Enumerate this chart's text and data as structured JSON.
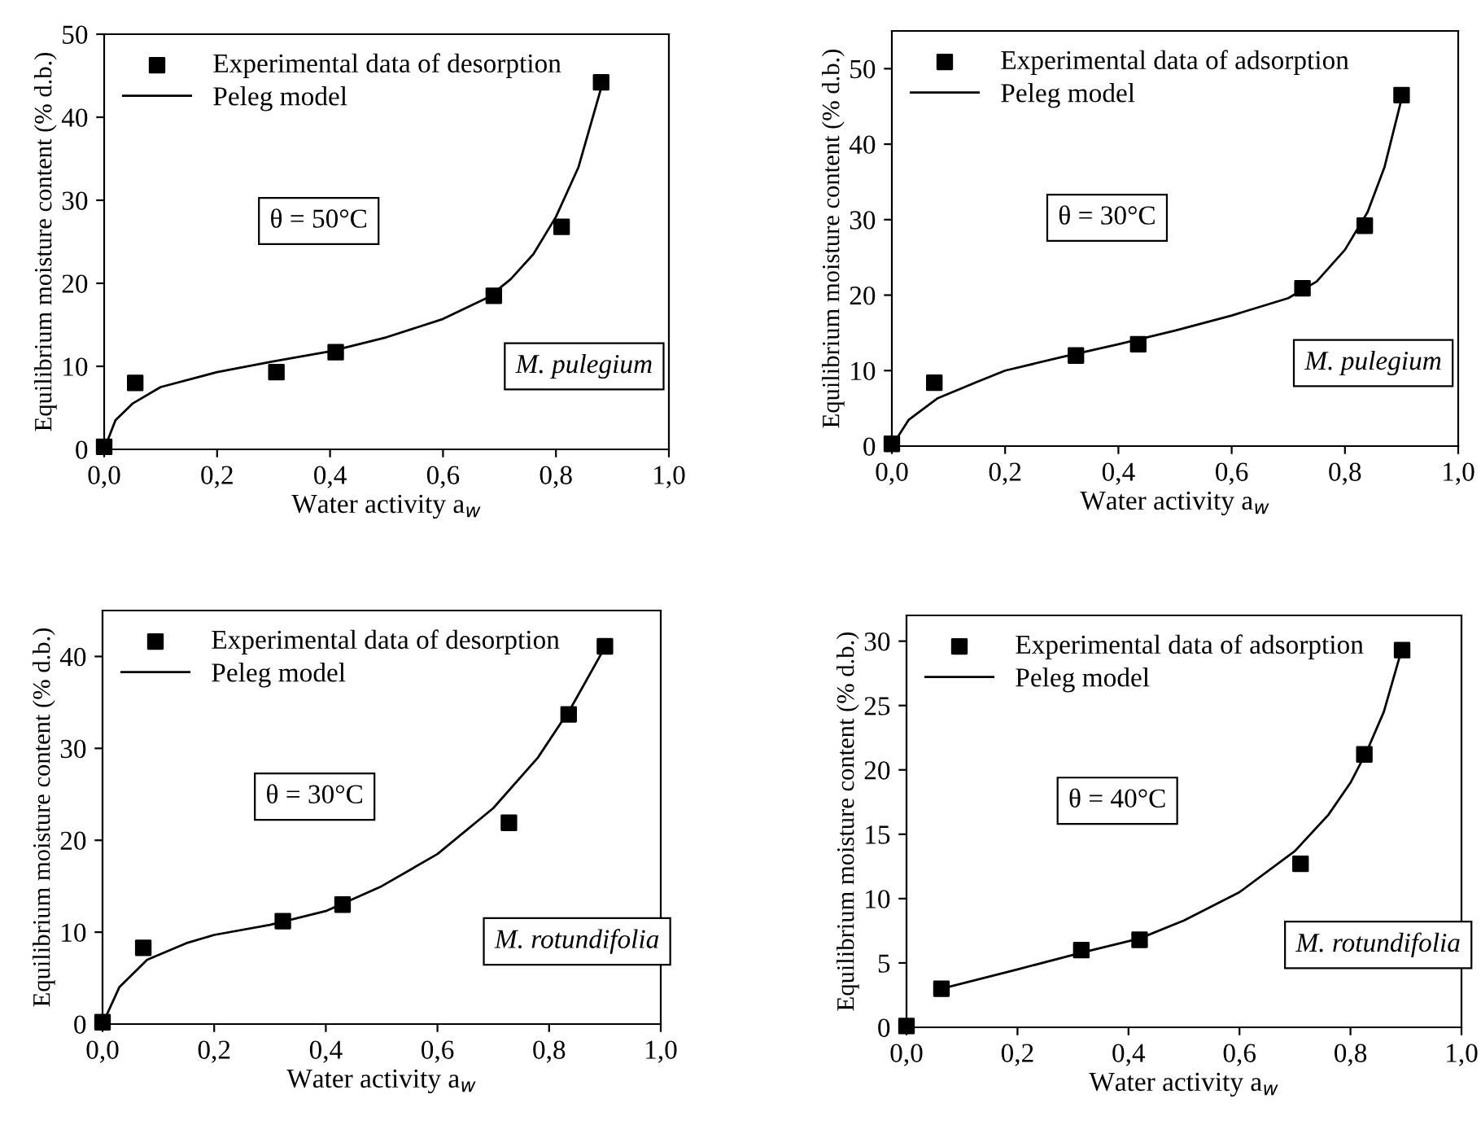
{
  "chart_data": [
    {
      "type": "scatter",
      "xlabel": "Water activity a$_{w}$",
      "ylabel": "Equilibrium moisture content (% d.b.)",
      "xlim": [
        0,
        1
      ],
      "ylim": [
        0,
        50
      ],
      "xticks": [
        {
          "value": 0,
          "label": "0,0"
        },
        {
          "value": 0.2,
          "label": "0,2"
        },
        {
          "value": 0.4,
          "label": "0,4"
        },
        {
          "value": 0.6,
          "label": "0,6"
        },
        {
          "value": 0.8,
          "label": "0,8"
        },
        {
          "value": 1,
          "label": "1,0"
        }
      ],
      "yticks": [
        0,
        10,
        20,
        30,
        40,
        50
      ],
      "legend": "top left",
      "grid": false,
      "annotations": [
        "θ = 50°C",
        "M. pulegium"
      ],
      "series": [
        {
          "name": "Experimental data of desorption",
          "marker": "square",
          "color": "#000000",
          "x": [
            0,
            0.055,
            0.305,
            0.41,
            0.69,
            0.81,
            0.88
          ],
          "values": [
            0.3,
            8,
            9.3,
            11.7,
            18.5,
            26.8,
            44.2
          ]
        },
        {
          "name": "Peleg model",
          "type": "line",
          "marker": "none",
          "line_style": "solid",
          "color": "#000000",
          "x": [
            0,
            0.02,
            0.05,
            0.1,
            0.2,
            0.3,
            0.4,
            0.5,
            0.6,
            0.68,
            0.72,
            0.76,
            0.8,
            0.84,
            0.88
          ],
          "values": [
            0,
            3.5,
            5.5,
            7.5,
            9.3,
            10.6,
            11.8,
            13.5,
            15.7,
            18.3,
            20.5,
            23.5,
            28,
            34,
            43.5
          ]
        }
      ]
    },
    {
      "type": "scatter",
      "xlabel": "Water activity a$_{w}$",
      "ylabel": "Equilibrium moisture content (% d.b.)",
      "xlim": [
        0,
        1
      ],
      "ylim": [
        0,
        55
      ],
      "xticks": [
        {
          "value": 0,
          "label": "0,0"
        },
        {
          "value": 0.2,
          "label": "0,2"
        },
        {
          "value": 0.4,
          "label": "0,4"
        },
        {
          "value": 0.6,
          "label": "0,6"
        },
        {
          "value": 0.8,
          "label": "0,8"
        },
        {
          "value": 1,
          "label": "1,0"
        }
      ],
      "yticks": [
        0,
        10,
        20,
        30,
        40,
        50
      ],
      "legend": "top left",
      "grid": false,
      "annotations": [
        "θ = 30°C",
        "M. pulegium"
      ],
      "series": [
        {
          "name": "Experimental data of adsorption",
          "marker": "square",
          "color": "#000000",
          "x": [
            0,
            0.075,
            0.325,
            0.435,
            0.725,
            0.835,
            0.9
          ],
          "values": [
            0.3,
            8.4,
            12,
            13.5,
            20.9,
            29.2,
            46.5
          ]
        },
        {
          "name": "Peleg model",
          "type": "line",
          "marker": "none",
          "line_style": "solid",
          "color": "#000000",
          "x": [
            0,
            0.03,
            0.08,
            0.15,
            0.2,
            0.3,
            0.4,
            0.5,
            0.6,
            0.7,
            0.75,
            0.8,
            0.84,
            0.87,
            0.9
          ],
          "values": [
            0,
            3.5,
            6.3,
            8.5,
            10,
            11.8,
            13.5,
            15.3,
            17.3,
            19.6,
            21.8,
            26,
            31,
            37,
            46
          ]
        }
      ]
    },
    {
      "type": "scatter",
      "xlabel": "Water activity a$_{w}$",
      "ylabel": "Equilibrium moisture content (% d.b.)",
      "xlim": [
        0,
        1
      ],
      "ylim": [
        0,
        45
      ],
      "xticks": [
        {
          "value": 0,
          "label": "0,0"
        },
        {
          "value": 0.2,
          "label": "0,2"
        },
        {
          "value": 0.4,
          "label": "0,4"
        },
        {
          "value": 0.6,
          "label": "0,6"
        },
        {
          "value": 0.8,
          "label": "0,8"
        },
        {
          "value": 1,
          "label": "1,0"
        }
      ],
      "yticks": [
        0,
        10,
        20,
        30,
        40
      ],
      "legend": "top left",
      "grid": false,
      "annotations": [
        "θ = 30°C",
        "M. rotundifolia"
      ],
      "series": [
        {
          "name": "Experimental data of desorption",
          "marker": "square",
          "color": "#000000",
          "x": [
            0,
            0.073,
            0.323,
            0.43,
            0.728,
            0.835,
            0.9
          ],
          "values": [
            0.2,
            8.3,
            11.2,
            13,
            21.9,
            33.7,
            41.1
          ]
        },
        {
          "name": "Peleg model",
          "type": "line",
          "marker": "none",
          "line_style": "solid",
          "color": "#000000",
          "x": [
            0,
            0.03,
            0.08,
            0.15,
            0.2,
            0.3,
            0.4,
            0.5,
            0.6,
            0.7,
            0.78,
            0.84,
            0.9
          ],
          "values": [
            0,
            4,
            7,
            8.8,
            9.7,
            10.8,
            12.3,
            15,
            18.5,
            23.5,
            29,
            34.5,
            41
          ]
        }
      ]
    },
    {
      "type": "scatter",
      "xlabel": "Water activity a$_{w}$",
      "ylabel": "Equilibrium moisture content (% d.b.)",
      "xlim": [
        0,
        1
      ],
      "ylim": [
        0,
        32
      ],
      "xticks": [
        {
          "value": 0,
          "label": "0,0"
        },
        {
          "value": 0.2,
          "label": "0,2"
        },
        {
          "value": 0.4,
          "label": "0,4"
        },
        {
          "value": 0.6,
          "label": "0,6"
        },
        {
          "value": 0.8,
          "label": "0,8"
        },
        {
          "value": 1,
          "label": "1,0"
        }
      ],
      "yticks": [
        0,
        5,
        10,
        15,
        20,
        25,
        30
      ],
      "legend": "top left",
      "grid": false,
      "annotations": [
        "θ = 40°C",
        "M. rotundifolia"
      ],
      "series": [
        {
          "name": "Experimental data of adsorption",
          "marker": "square",
          "color": "#000000",
          "x": [
            0,
            0.063,
            0.315,
            0.42,
            0.71,
            0.825,
            0.893
          ],
          "values": [
            0.1,
            3,
            6,
            6.8,
            12.7,
            21.2,
            29.3
          ]
        },
        {
          "name": "Peleg model",
          "type": "line",
          "marker": "none",
          "line_style": "solid",
          "color": "#000000",
          "x": [
            0.063,
            0.2,
            0.315,
            0.42,
            0.5,
            0.6,
            0.7,
            0.76,
            0.8,
            0.83,
            0.86,
            0.89
          ],
          "values": [
            3,
            4.5,
            5.8,
            6.9,
            8.3,
            10.5,
            13.7,
            16.5,
            19,
            21.5,
            24.5,
            29
          ]
        }
      ]
    }
  ]
}
